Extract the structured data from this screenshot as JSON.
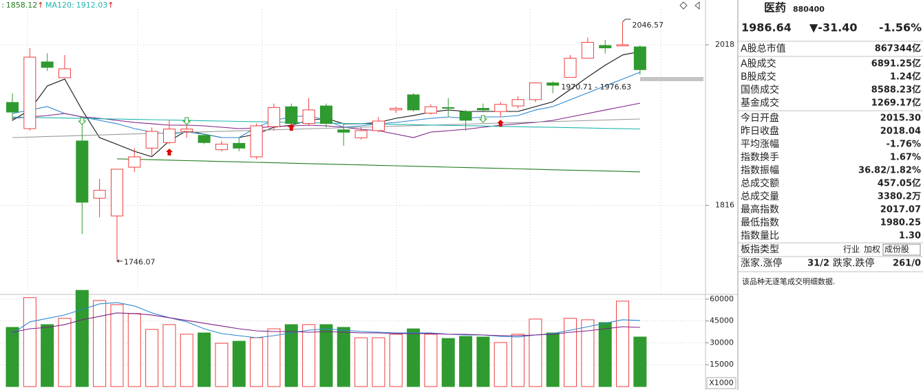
{
  "chart_data": [
    {
      "type": "candlestick",
      "open": [
        1945.4,
        1912.5,
        1996.4,
        1976.5,
        1897.0,
        1825.0,
        1802.7,
        1864.0,
        1888.0,
        1895.0,
        1909.0,
        1904.0,
        1886.0,
        1894.0,
        1877.0,
        1915.0,
        1940.0,
        1919.0,
        1941.0,
        1911.0,
        1901.0,
        1910.0,
        1936.0,
        1955.0,
        1932.0,
        1939.0,
        1934.0,
        1938.0,
        1934.0,
        1941.0,
        1949.0,
        1970.0,
        1977.0,
        2001.0,
        2017.0,
        2016.5,
        2015.3
      ],
      "high": [
        1956.6,
        2013.7,
        2007.0,
        2005.0,
        1918.6,
        1849.4,
        1861.5,
        1888.0,
        1914.0,
        1923.0,
        1918.0,
        1906.0,
        1897.0,
        1901.0,
        1919.0,
        1944.0,
        1944.0,
        1951.0,
        1944.0,
        1918.0,
        1914.0,
        1927.0,
        1940.0,
        1957.0,
        1943.0,
        1951.0,
        1936.0,
        1944.0,
        1946.0,
        1953.0,
        1970.0,
        1972.0,
        2005.0,
        2027.0,
        2024.0,
        2046.57,
        2017.07
      ],
      "low": [
        1922.0,
        1910.0,
        1985.0,
        1976.0,
        1780.0,
        1801.0,
        1746.07,
        1858.0,
        1877.0,
        1893.0,
        1901.0,
        1893.0,
        1884.0,
        1884.0,
        1874.0,
        1910.0,
        1914.0,
        1916.0,
        1914.0,
        1891.0,
        1899.0,
        1908.0,
        1932.0,
        1934.0,
        1930.0,
        1927.0,
        1910.0,
        1933.0,
        1927.0,
        1938.0,
        1946.0,
        1957.0,
        1977.0,
        2001.0,
        2007.0,
        2016.0,
        1980.25
      ],
      "close": [
        1933.3,
        2002.4,
        1989.5,
        1987.7,
        1820.0,
        1835.0,
        1861.5,
        1877.0,
        1909.0,
        1912.0,
        1912.0,
        1895.0,
        1893.0,
        1888.0,
        1916.0,
        1939.0,
        1919.0,
        1936.0,
        1919.0,
        1908.0,
        1910.0,
        1922.0,
        1938.0,
        1936.0,
        1940.0,
        1938.0,
        1923.0,
        1936.0,
        1943.0,
        1949.0,
        1970.0,
        1967.0,
        2001.0,
        2021.0,
        2014.0,
        2018.04,
        1986.64
      ],
      "up_color": "#f03c3c",
      "down_color": "#2f9a2f",
      "ylim": [
        1706.7,
        2074.2
      ],
      "yticks": [
        2018,
        1816
      ],
      "grid": true,
      "series": [
        {
          "color": "#111111",
          "values": [
            1922.9,
            1935.9,
            1966.1,
            1974.8,
            1935.9,
            1901.3,
            1892.7,
            1884.0,
            1877.1,
            1897.0,
            1910.0,
            1905.6,
            1901.3,
            1901.3,
            1905.6,
            1914.2,
            1916.8,
            1922.9,
            1925.5,
            1918.6,
            1918.6,
            1920.3,
            1925.5,
            1929.0,
            1933.3,
            1935.9,
            1934.1,
            1934.1,
            1934.1,
            1934.1,
            1940.2,
            1946.2,
            1961.8,
            1977.4,
            1992.1,
            2005.1,
            2009.4
          ]
        },
        {
          "color": "#2a86cf",
          "values": [
            1931.5,
            1935.9,
            1940.2,
            1931.5,
            1927.2,
            1922.9,
            1918.6,
            1912.5,
            1908.2,
            1905.6,
            1908.2,
            1905.6,
            1901.3,
            1901.3,
            1914.2,
            1922.9,
            1927.2,
            1928.9,
            1922.9,
            1914.2,
            1916.0,
            1918.6,
            1920.3,
            1922.9,
            1925.5,
            1927.2,
            1925.5,
            1927.2,
            1927.2,
            1928.9,
            1935.9,
            1940.2,
            1948.8,
            1957.5,
            1966.1,
            1974.8,
            1983.4
          ]
        },
        {
          "color": "#7d1f86",
          "values": [
            1925.5,
            1927.2,
            1928.9,
            1931.5,
            1927.2,
            1925.5,
            1922.9,
            1920.3,
            1918.6,
            1916.8,
            1916.8,
            1916.0,
            1914.2,
            1912.5,
            1913.4,
            1915.1,
            1916.0,
            1916.8,
            1916.0,
            1914.2,
            1911.6,
            1909.9,
            1905.6,
            1901.3,
            1908.2,
            1909.9,
            1911.6,
            1914.2,
            1916.8,
            1918.6,
            1920.3,
            1922.9,
            1927.2,
            1931.5,
            1935.9,
            1940.2,
            1944.5
          ]
        },
        {
          "color": "#9a9a9a",
          "values": [
            1901.3,
            1901.9,
            1902.6,
            1903.2,
            1903.9,
            1904.5,
            1905.2,
            1905.8,
            1906.5,
            1907.1,
            1907.8,
            1908.4,
            1909.1,
            1909.7,
            1910.4,
            1911.0,
            1911.7,
            1912.3,
            1912.9,
            1913.6,
            1914.2,
            1914.9,
            1915.5,
            1916.2,
            1916.8,
            1917.5,
            1918.1,
            1918.8,
            1919.4,
            1920.1,
            1920.7,
            1921.4,
            1922.0,
            1922.7,
            1923.3,
            1924.0,
            1924.6
          ]
        },
        {
          "name": "MA120:",
          "arrow": "↑",
          "color": "#1fb5ad",
          "values": [
            1927.0,
            1926.6,
            1926.2,
            1925.8,
            1925.3,
            1924.9,
            1924.5,
            1924.1,
            1923.7,
            1923.3,
            1922.8,
            1922.4,
            1922.0,
            1921.6,
            1921.2,
            1920.8,
            1920.3,
            1919.9,
            1919.5,
            1919.1,
            1918.7,
            1918.3,
            1917.8,
            1917.4,
            1917.0,
            1916.6,
            1916.2,
            1915.8,
            1915.3,
            1914.9,
            1914.5,
            1914.1,
            1913.7,
            1913.3,
            1912.8,
            1912.4,
            1912.03
          ]
        },
        {
          "name": ":",
          "arrow": "↑",
          "color": "#1f7a1f",
          "values": [
            null,
            null,
            null,
            null,
            null,
            null,
            1874.5,
            1874.0,
            1873.4,
            1872.9,
            1872.3,
            1871.8,
            1871.2,
            1870.7,
            1870.1,
            1869.6,
            1869.0,
            1868.5,
            1867.9,
            1867.4,
            1866.9,
            1866.3,
            1865.8,
            1865.2,
            1864.7,
            1864.1,
            1863.6,
            1863.0,
            1862.5,
            1861.9,
            1861.4,
            1860.8,
            1860.3,
            1859.8,
            1859.2,
            1858.7,
            1858.12
          ]
        }
      ],
      "annotations": [
        {
          "text": "1970.71 - 1976.63"
        }
      ]
    },
    {
      "type": "bar",
      "values": [
        40600,
        61000,
        42500,
        46800,
        66000,
        59000,
        56200,
        50100,
        39200,
        42500,
        35900,
        36800,
        29700,
        31100,
        33500,
        39600,
        42500,
        42500,
        42500,
        40600,
        33500,
        33500,
        35900,
        39600,
        35900,
        33000,
        34400,
        34000,
        30200,
        35900,
        46300,
        36800,
        46800,
        45800,
        43900,
        58600,
        34000
      ],
      "ylim": [
        0,
        67000
      ],
      "yticks": [
        60000,
        45000,
        30000,
        15000
      ],
      "grid": true,
      "unit_label": "X1000",
      "series": [
        {
          "color": "#2a86cf",
          "values": [
            36330,
            44380,
            46750,
            49120,
            52910,
            56700,
            57650,
            55280,
            50540,
            47220,
            44380,
            39650,
            36330,
            34900,
            33480,
            34900,
            36810,
            38700,
            39650,
            38700,
            37760,
            37290,
            36810,
            36810,
            36810,
            35860,
            35390,
            35390,
            34440,
            33970,
            35390,
            36330,
            38700,
            41070,
            43440,
            45810,
            45330
          ]
        },
        {
          "color": "#7d1f86",
          "values": [
            37290,
            39650,
            40600,
            42490,
            45810,
            48170,
            50540,
            50070,
            49120,
            47220,
            45330,
            43440,
            41550,
            39650,
            38230,
            37760,
            37760,
            37290,
            37760,
            37290,
            36810,
            36810,
            36330,
            36330,
            36330,
            35860,
            35860,
            35390,
            34910,
            34910,
            35390,
            35860,
            37290,
            38230,
            39650,
            41070,
            40600
          ]
        }
      ]
    }
  ],
  "quote_panel": {
    "name": "医药",
    "code": "880400",
    "price": "1986.64",
    "change": "▼-31.40",
    "change_pct": "-1.56%",
    "quote_color": "#1a9a1a",
    "rows": [
      {
        "label": "A股总市值",
        "value": "867344亿"
      },
      {
        "label": "A股成交",
        "value": "6891.25亿"
      },
      {
        "label": "B股成交",
        "value": "1.24亿"
      },
      {
        "label": "国债成交",
        "value": "8588.23亿"
      },
      {
        "label": "基金成交",
        "value": "1269.17亿"
      },
      {
        "label": "今日开盘",
        "value": "2015.30",
        "color": "#1a9a1a"
      },
      {
        "label": "昨日收盘",
        "value": "2018.04"
      },
      {
        "label": "平均涨幅",
        "value": "-1.76%",
        "color": "#1a9a1a"
      },
      {
        "label": "指数换手",
        "value": "1.67%"
      },
      {
        "label": "指数振幅",
        "value": "36.82/1.82%"
      },
      {
        "label": "总成交额",
        "value": "457.05亿"
      },
      {
        "label": "总成交量",
        "value": "3380.2万"
      },
      {
        "label": "最高指数",
        "value": "2017.07",
        "color": "#1a9a1a"
      },
      {
        "label": "最低指数",
        "value": "1980.25",
        "color": "#1a9a1a"
      },
      {
        "label": "指数量比",
        "value": "1.30",
        "color": "#e02020"
      }
    ],
    "board_type": {
      "label": "板指类型",
      "tags": [
        "行业",
        "加权",
        "成份股"
      ]
    },
    "breadth": [
      {
        "label": "涨家.涨停",
        "value": "31/2",
        "color": "#e02020"
      },
      {
        "label": "跌家.跌停",
        "value": "261/0",
        "color": "#1a9a1a"
      }
    ],
    "note": "该品种无逐笔成交明细数据."
  }
}
